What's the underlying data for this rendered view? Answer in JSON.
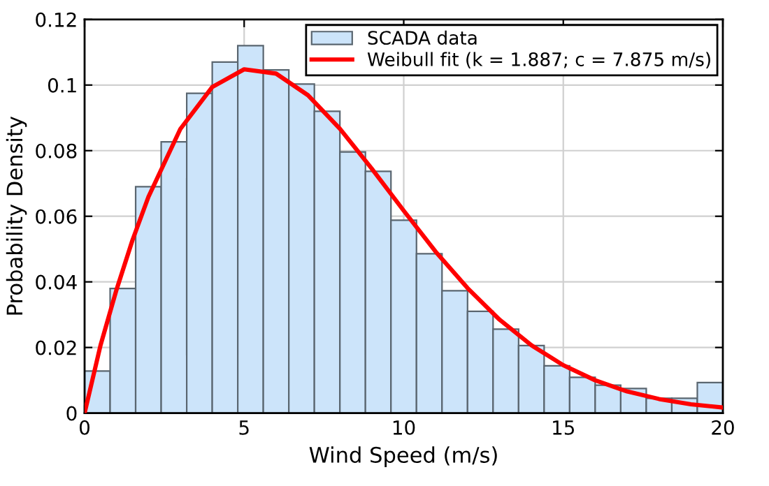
{
  "chart_data": {
    "type": "histogram",
    "xlabel": "Wind Speed (m/s)",
    "ylabel": "Probability Density",
    "bins": [
      0,
      0.8,
      1.6,
      2.4,
      3.2,
      4.0,
      4.8,
      5.6,
      6.4,
      7.2,
      8.0,
      8.8,
      9.6,
      10.4,
      11.2,
      12.0,
      12.8,
      13.6,
      14.4,
      15.2,
      16.0,
      16.8,
      17.6,
      18.4,
      19.2,
      20.0
    ],
    "series": [
      {
        "name": "SCADA data",
        "color": "#cce4fa",
        "values": [
          0.0128,
          0.038,
          0.069,
          0.0827,
          0.0975,
          0.107,
          0.112,
          0.1046,
          0.1003,
          0.092,
          0.0796,
          0.0737,
          0.0588,
          0.0486,
          0.0373,
          0.031,
          0.0256,
          0.0206,
          0.0144,
          0.0109,
          0.0085,
          0.0075,
          0.0045,
          0.0045,
          0.0093
        ]
      },
      {
        "type": "line",
        "name": "Weibull fit (k = 1.887; c = 7.875 m/s)",
        "color": "#ff0000",
        "x": [
          0,
          0.5,
          1,
          1.5,
          2,
          3,
          4,
          5,
          6,
          7,
          8,
          9,
          10,
          11,
          12,
          13,
          14,
          15,
          16,
          17,
          18,
          19,
          20
        ],
        "values": [
          0,
          0.0207,
          0.0376,
          0.0527,
          0.0659,
          0.0866,
          0.0994,
          0.1048,
          0.1035,
          0.0969,
          0.0867,
          0.0745,
          0.0617,
          0.0492,
          0.0381,
          0.0285,
          0.0207,
          0.0146,
          0.01,
          0.0066,
          0.0043,
          0.0027,
          0.0017
        ]
      }
    ],
    "xlim": [
      0,
      20
    ],
    "ylim": [
      0,
      0.12
    ],
    "xticks": [
      0,
      5,
      10,
      15,
      20
    ],
    "yticks": [
      0,
      0.02,
      0.04,
      0.06,
      0.08,
      0.1,
      0.12
    ],
    "grid": true,
    "legend": "top right",
    "line_style": "solid",
    "marker": "none"
  }
}
